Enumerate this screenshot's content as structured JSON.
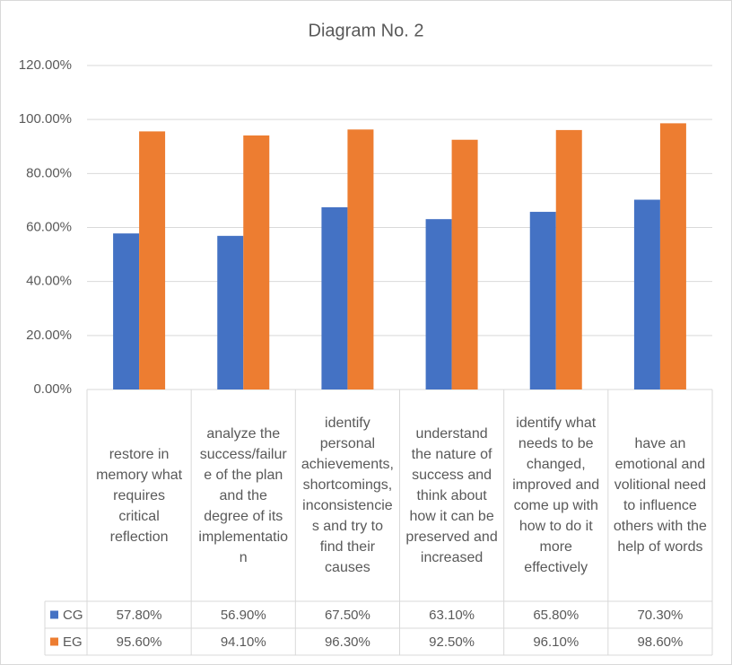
{
  "chart_data": {
    "type": "bar",
    "title": "Diagram No. 2",
    "categories": [
      "restore in memory what requires critical reflection",
      "analyze the success/failure of the plan and the degree of its implementation",
      "identify personal achievements, shortcomings, inconsistencies and try to find their causes",
      "understand the nature of success and think about how it can be preserved and increased",
      "identify what needs to be changed, improved and come up with how to do it more effectively",
      "have an emotional and volitional need to influence others with the help of words"
    ],
    "series": [
      {
        "name": "CG",
        "color": "#4472c4",
        "values": [
          57.8,
          56.9,
          67.5,
          63.1,
          65.8,
          70.3
        ],
        "value_labels": [
          "57.80%",
          "56.90%",
          "67.50%",
          "63.10%",
          "65.80%",
          "70.30%"
        ]
      },
      {
        "name": "EG",
        "color": "#ed7d31",
        "values": [
          95.6,
          94.1,
          96.3,
          92.5,
          96.1,
          98.6
        ],
        "value_labels": [
          "95.60%",
          "94.10%",
          "96.30%",
          "92.50%",
          "96.10%",
          "98.60%"
        ]
      }
    ],
    "ylim": [
      0,
      120
    ],
    "yticks": [
      {
        "value": 0,
        "label": "0.00%"
      },
      {
        "value": 20,
        "label": "20.00%"
      },
      {
        "value": 40,
        "label": "40.00%"
      },
      {
        "value": 60,
        "label": "60.00%"
      },
      {
        "value": 80,
        "label": "80.00%"
      },
      {
        "value": 100,
        "label": "100.00%"
      },
      {
        "value": 120,
        "label": "120.00%"
      }
    ],
    "grid": true
  }
}
